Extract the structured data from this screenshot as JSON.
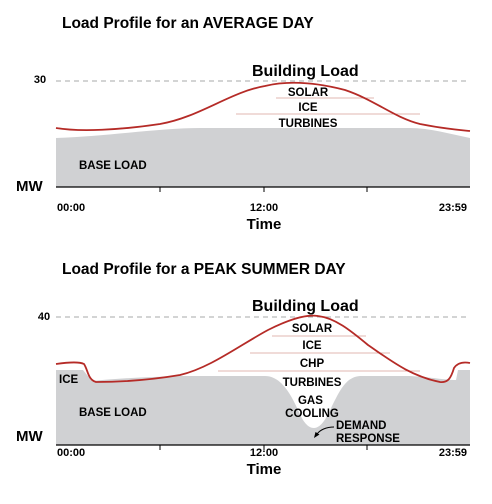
{
  "chart_data": [
    {
      "type": "area",
      "title": "Load Profile for an AVERAGE DAY",
      "curve_label": "Building Load",
      "ylabel": "MW",
      "xlabel": "Time",
      "x_ticks": [
        "00:00",
        "12:00",
        "23:59"
      ],
      "y_ticks": [
        30
      ],
      "ylim": [
        0,
        32
      ],
      "x_hours": [
        0,
        1,
        2,
        4,
        6,
        8,
        10,
        12,
        13,
        14,
        15,
        16,
        18,
        20,
        22,
        23,
        24
      ],
      "building_load": [
        16.5,
        16.2,
        16.2,
        16.6,
        17.6,
        19.7,
        23.0,
        26.7,
        28.4,
        29.4,
        29.3,
        28.0,
        24.2,
        20.4,
        17.9,
        17.2,
        17.0
      ],
      "base_load": [
        15.0,
        15.4,
        15.6,
        16.0,
        16.6,
        17.3,
        17.4,
        17.4,
        17.4,
        17.4,
        17.4,
        17.4,
        17.4,
        17.4,
        17.0,
        16.2,
        15.3
      ],
      "layers": [
        "BASE LOAD",
        "TURBINES",
        "ICE",
        "SOLAR"
      ]
    },
    {
      "type": "area",
      "title": "Load Profile for a PEAK SUMMER DAY",
      "curve_label": "Building Load",
      "ylabel": "MW",
      "xlabel": "Time",
      "x_ticks": [
        "00:00",
        "12:00",
        "23:59"
      ],
      "y_ticks": [
        40
      ],
      "ylim": [
        0,
        42
      ],
      "x_hours": [
        0,
        1,
        2,
        4,
        6,
        8,
        10,
        12,
        13,
        14,
        15,
        16,
        18,
        20,
        22,
        23,
        24
      ],
      "building_load": [
        22.5,
        22.5,
        18.3,
        18.7,
        19.7,
        22.3,
        28.6,
        35.4,
        38.3,
        39.8,
        39.6,
        37.0,
        29.6,
        22.2,
        18.6,
        22.9,
        22.9
      ],
      "base_load": [
        14.8,
        15.0,
        15.0,
        17.0,
        18.8,
        19.3,
        19.3,
        19.3,
        17.2,
        12.8,
        12.0,
        17.8,
        19.3,
        19.3,
        16.6,
        18.6,
        18.6
      ],
      "layers": [
        "BASE LOAD",
        "ICE",
        "GAS COOLING",
        "DEMAND RESPONSE",
        "TURBINES",
        "CHP",
        "ICE",
        "SOLAR"
      ]
    }
  ]
}
